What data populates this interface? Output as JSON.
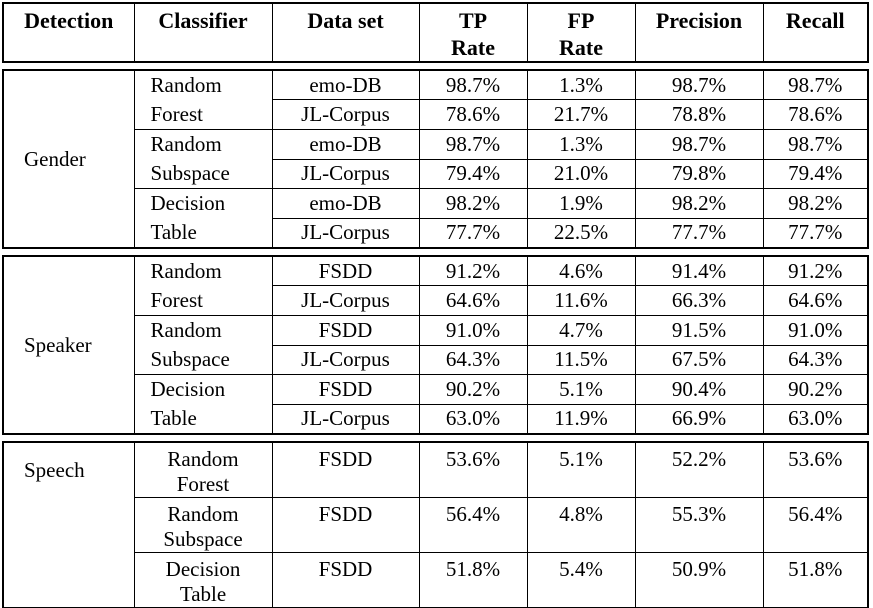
{
  "table": {
    "header": {
      "columns": [
        {
          "id": "detection",
          "lines": [
            "Detection"
          ]
        },
        {
          "id": "classifier",
          "lines": [
            "Classifier"
          ]
        },
        {
          "id": "dataset",
          "lines": [
            "Data set"
          ]
        },
        {
          "id": "tp_rate",
          "lines": [
            "TP",
            "Rate"
          ]
        },
        {
          "id": "fp_rate",
          "lines": [
            "FP",
            "Rate"
          ]
        },
        {
          "id": "precision",
          "lines": [
            "Precision"
          ]
        },
        {
          "id": "recall",
          "lines": [
            "Recall"
          ]
        }
      ]
    },
    "sections": [
      {
        "detection": "Gender",
        "groups": [
          {
            "classifier_lines": [
              "Random",
              "Forest"
            ],
            "rows": [
              {
                "dataset": "emo-DB",
                "tp_rate": "98.7%",
                "fp_rate": "1.3%",
                "precision": "98.7%",
                "recall": "98.7%"
              },
              {
                "dataset": "JL-Corpus",
                "tp_rate": "78.6%",
                "fp_rate": "21.7%",
                "precision": "78.8%",
                "recall": "78.6%"
              }
            ]
          },
          {
            "classifier_lines": [
              "Random",
              "Subspace"
            ],
            "rows": [
              {
                "dataset": "emo-DB",
                "tp_rate": "98.7%",
                "fp_rate": "1.3%",
                "precision": "98.7%",
                "recall": "98.7%"
              },
              {
                "dataset": "JL-Corpus",
                "tp_rate": "79.4%",
                "fp_rate": "21.0%",
                "precision": "79.8%",
                "recall": "79.4%"
              }
            ]
          },
          {
            "classifier_lines": [
              "Decision",
              "Table"
            ],
            "rows": [
              {
                "dataset": "emo-DB",
                "tp_rate": "98.2%",
                "fp_rate": "1.9%",
                "precision": "98.2%",
                "recall": "98.2%"
              },
              {
                "dataset": "JL-Corpus",
                "tp_rate": "77.7%",
                "fp_rate": "22.5%",
                "precision": "77.7%",
                "recall": "77.7%"
              }
            ]
          }
        ]
      },
      {
        "detection": "Speaker",
        "groups": [
          {
            "classifier_lines": [
              "Random",
              "Forest"
            ],
            "rows": [
              {
                "dataset": "FSDD",
                "tp_rate": "91.2%",
                "fp_rate": "4.6%",
                "precision": "91.4%",
                "recall": "91.2%"
              },
              {
                "dataset": "JL-Corpus",
                "tp_rate": "64.6%",
                "fp_rate": "11.6%",
                "precision": "66.3%",
                "recall": "64.6%"
              }
            ]
          },
          {
            "classifier_lines": [
              "Random",
              "Subspace"
            ],
            "rows": [
              {
                "dataset": "FSDD",
                "tp_rate": "91.0%",
                "fp_rate": "4.7%",
                "precision": "91.5%",
                "recall": "91.0%"
              },
              {
                "dataset": "JL-Corpus",
                "tp_rate": "64.3%",
                "fp_rate": "11.5%",
                "precision": "67.5%",
                "recall": "64.3%"
              }
            ]
          },
          {
            "classifier_lines": [
              "Decision",
              "Table"
            ],
            "rows": [
              {
                "dataset": "FSDD",
                "tp_rate": "90.2%",
                "fp_rate": "5.1%",
                "precision": "90.4%",
                "recall": "90.2%"
              },
              {
                "dataset": "JL-Corpus",
                "tp_rate": "63.0%",
                "fp_rate": "11.9%",
                "precision": "66.9%",
                "recall": "63.0%"
              }
            ]
          }
        ]
      },
      {
        "detection": "Speech",
        "groups": [
          {
            "classifier_lines": [
              "Random",
              "Forest"
            ],
            "rows": [
              {
                "dataset": "FSDD",
                "tp_rate": "53.6%",
                "fp_rate": "5.1%",
                "precision": "52.2%",
                "recall": "53.6%"
              }
            ]
          },
          {
            "classifier_lines": [
              "Random",
              "Subspace"
            ],
            "rows": [
              {
                "dataset": "FSDD",
                "tp_rate": "56.4%",
                "fp_rate": "4.8%",
                "precision": "55.3%",
                "recall": "56.4%"
              }
            ]
          },
          {
            "classifier_lines": [
              "Decision",
              "Table"
            ],
            "rows": [
              {
                "dataset": "FSDD",
                "tp_rate": "51.8%",
                "fp_rate": "5.4%",
                "precision": "50.9%",
                "recall": "51.8%"
              }
            ]
          }
        ]
      }
    ]
  }
}
